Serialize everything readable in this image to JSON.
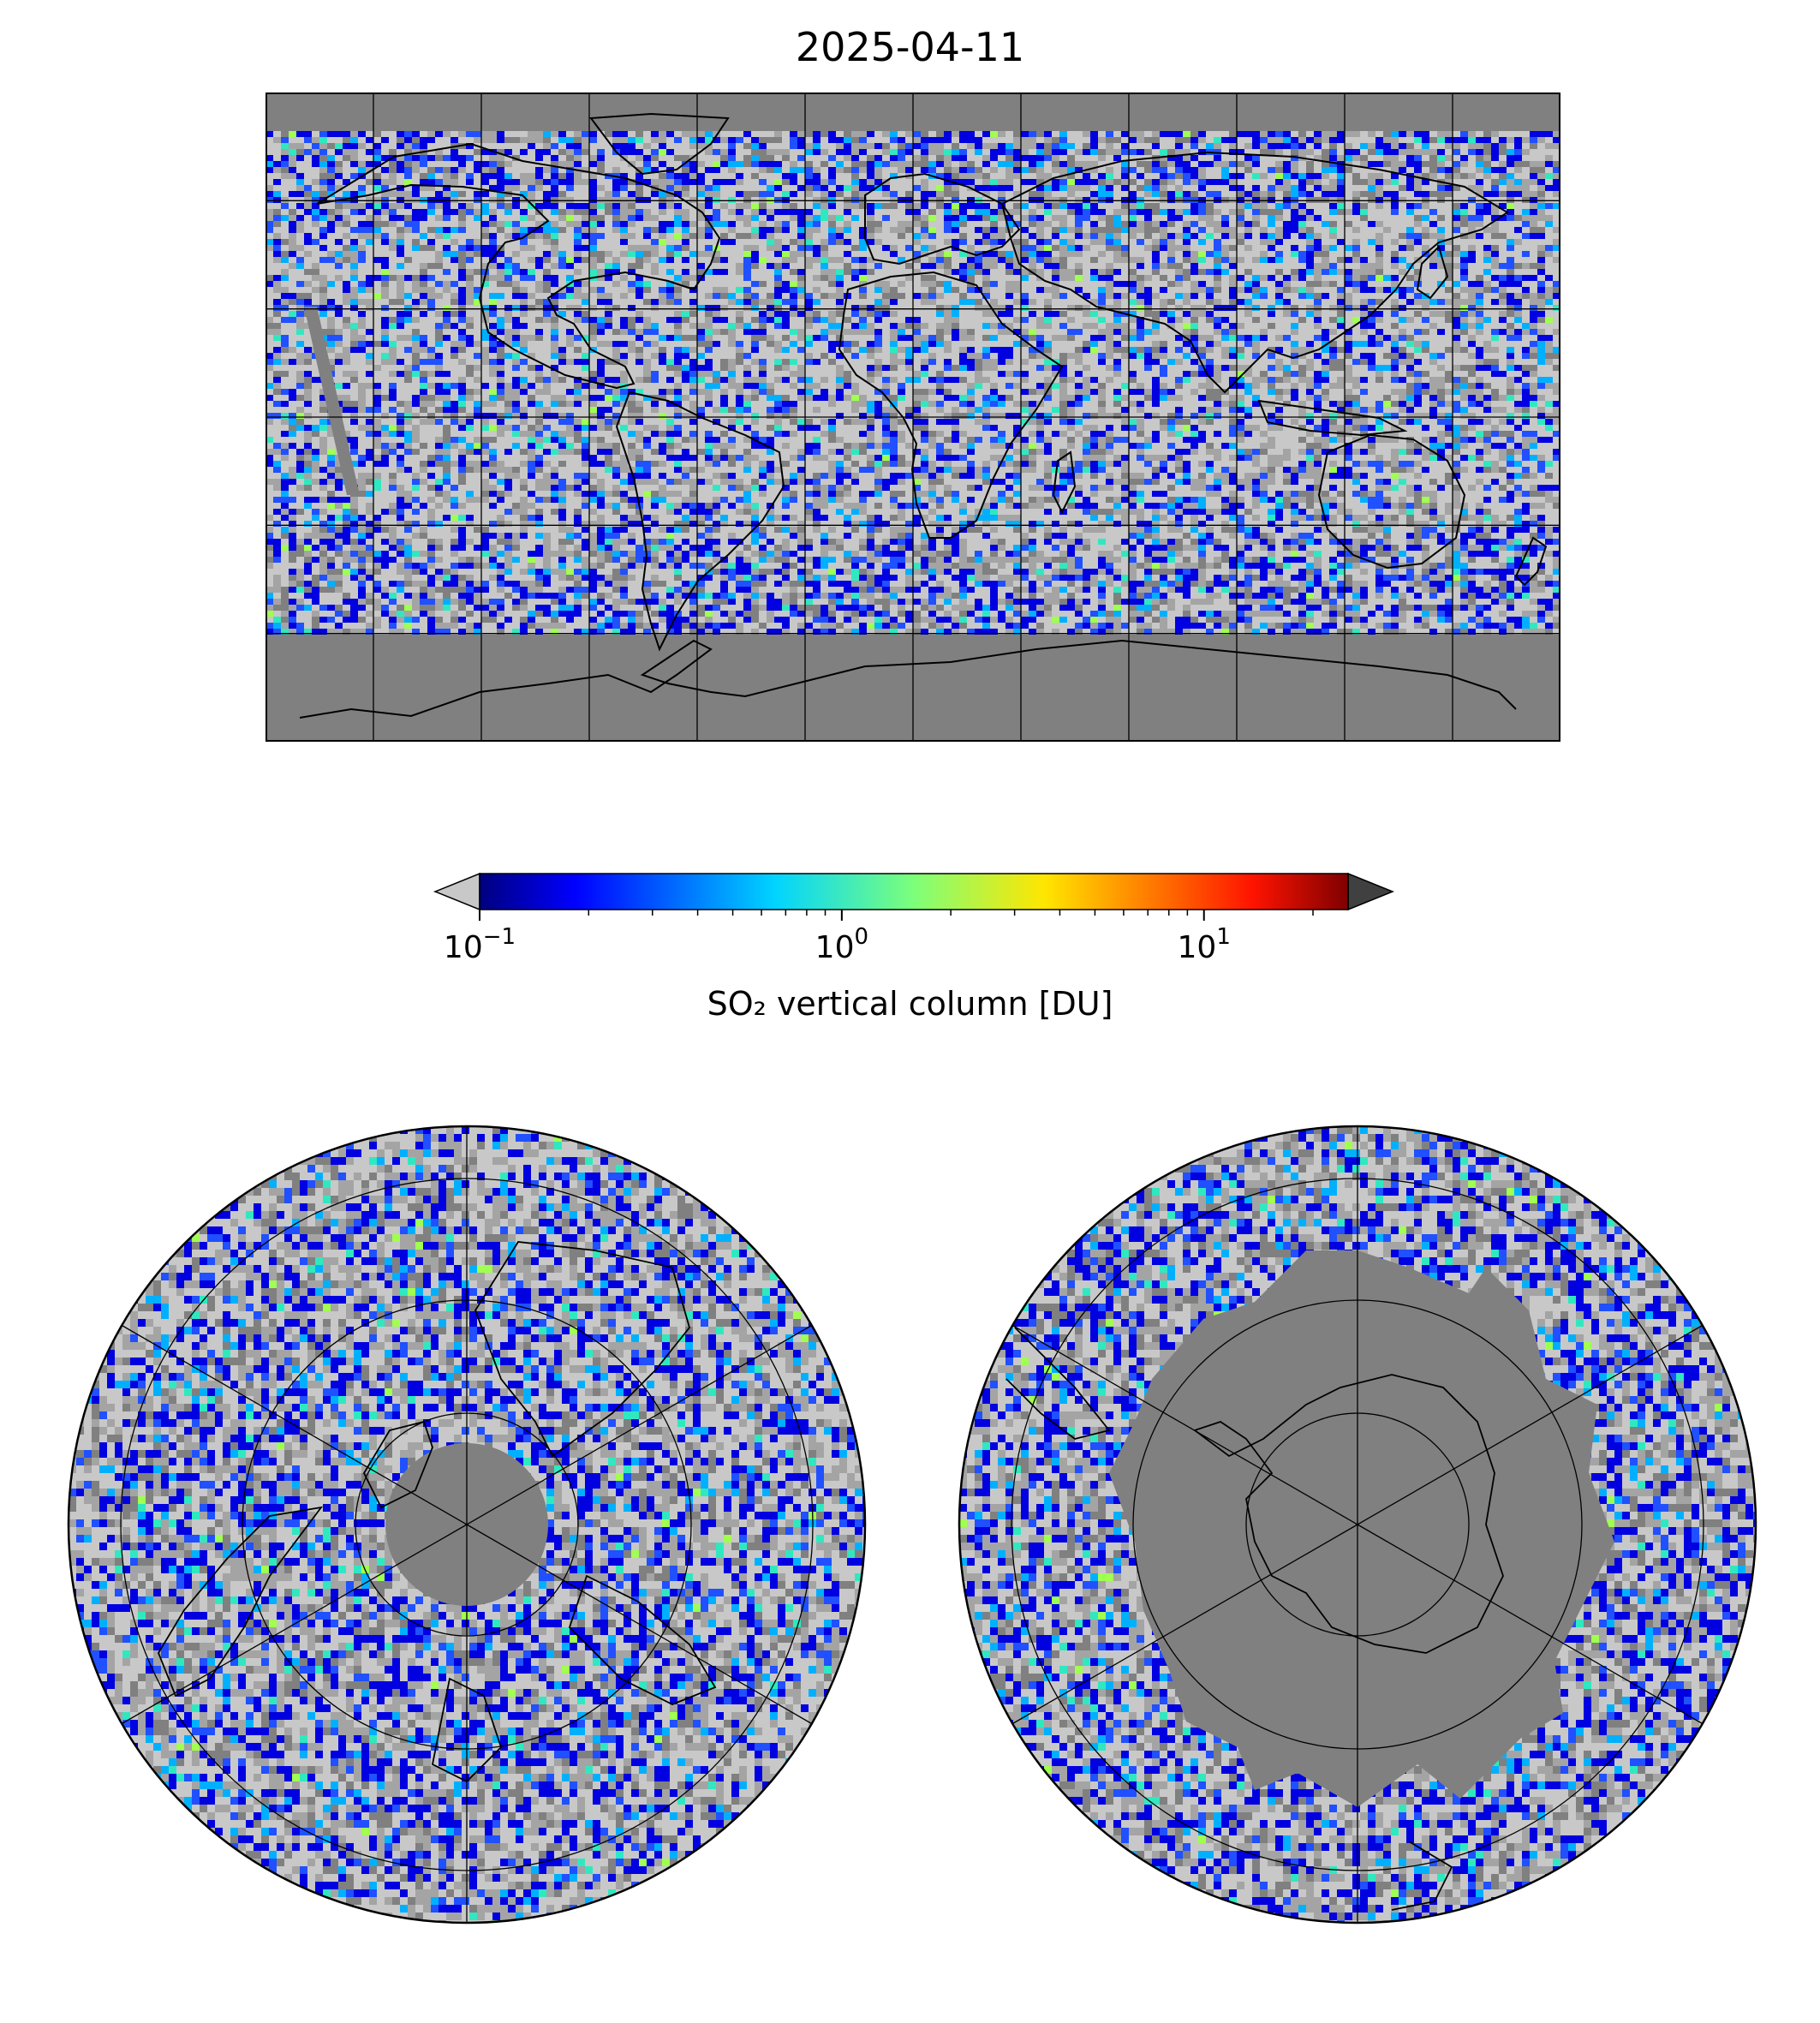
{
  "title": "2025-04-11",
  "colorbar": {
    "label": "SO₂ vertical column [DU]",
    "scale": "log",
    "colormap": "jet",
    "range": [
      0.1,
      25
    ],
    "under_color": "#c8c8c8",
    "over_color": "#404040",
    "ticks": [
      {
        "value": 0.1,
        "base": "10",
        "exp": "−1"
      },
      {
        "value": 1,
        "base": "10",
        "exp": "0"
      },
      {
        "value": 10,
        "base": "10",
        "exp": "1"
      }
    ]
  },
  "maps": {
    "global": {
      "projection": "PlateCarree",
      "gridlines": true,
      "fill_value_color": "#808080"
    },
    "north_polar": {
      "projection": "NorthPolarStereo"
    },
    "south_polar": {
      "projection": "SouthPolarStereo"
    }
  },
  "colors": {
    "no_data": "#808080",
    "below_min_light": "#c8c8c8",
    "below_min_mid": "#a4a4a4",
    "coastline": "#000000",
    "gridline": "#000000"
  }
}
